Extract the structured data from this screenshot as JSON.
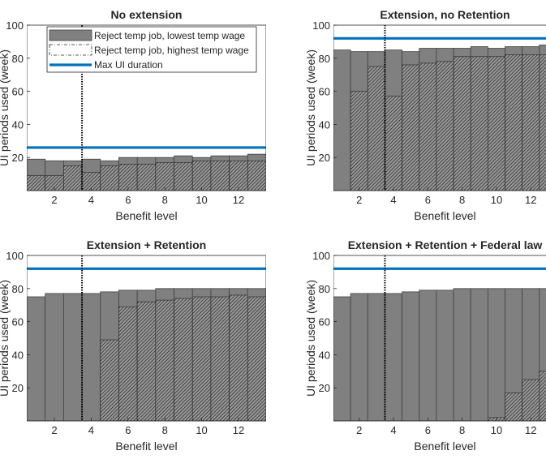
{
  "chart_data": [
    {
      "type": "bar",
      "title": "No extension",
      "xlabel": "Benefit level",
      "ylabel": "UI periods used (week)",
      "xlim": [
        0.5,
        13.5
      ],
      "ylim": [
        0,
        100
      ],
      "xticks": [
        2,
        4,
        6,
        8,
        10,
        12
      ],
      "yticks": [
        20,
        40,
        60,
        80,
        100
      ],
      "categories": [
        1,
        2,
        3,
        4,
        5,
        6,
        7,
        8,
        9,
        10,
        11,
        12,
        13
      ],
      "series": [
        {
          "name": "Reject temp job, lowest temp wage",
          "style": "solid-gray",
          "values": [
            19,
            18,
            18,
            19,
            18,
            20,
            20,
            20,
            21,
            20,
            21,
            21,
            22
          ]
        },
        {
          "name": "Reject temp job, highest temp wage",
          "style": "hatched",
          "values": [
            9,
            9,
            15,
            11,
            15,
            16,
            16,
            17,
            17,
            18,
            18,
            18,
            18
          ]
        }
      ],
      "max_ui_duration": 26,
      "vline_x": 3.5,
      "legend": {
        "position": "top",
        "entries": [
          "Reject temp job, lowest temp wage",
          "Reject temp job, highest temp wage",
          "Max UI duration"
        ]
      }
    },
    {
      "type": "bar",
      "title": "Extension, no Retention",
      "xlabel": "Benefit level",
      "ylabel": "UI periods used (week)",
      "xlim": [
        0.5,
        13.5
      ],
      "ylim": [
        0,
        100
      ],
      "xticks": [
        2,
        4,
        6,
        8,
        10,
        12
      ],
      "yticks": [
        20,
        40,
        60,
        80,
        100
      ],
      "categories": [
        1,
        2,
        3,
        4,
        5,
        6,
        7,
        8,
        9,
        10,
        11,
        12,
        13
      ],
      "series": [
        {
          "name": "Reject temp job, lowest temp wage",
          "style": "solid-gray",
          "values": [
            85,
            84,
            84,
            85,
            84,
            86,
            86,
            86,
            87,
            86,
            87,
            87,
            88
          ]
        },
        {
          "name": "Reject temp job, highest temp wage",
          "style": "hatched",
          "values": [
            0,
            60,
            75,
            57,
            76,
            77,
            78,
            81,
            81,
            81,
            82,
            82,
            82
          ]
        }
      ],
      "max_ui_duration": 92,
      "vline_x": 3.5
    },
    {
      "type": "bar",
      "title": "Extension + Retention",
      "xlabel": "Benefit level",
      "ylabel": "UI periods used (week)",
      "xlim": [
        0.5,
        13.5
      ],
      "ylim": [
        0,
        100
      ],
      "xticks": [
        2,
        4,
        6,
        8,
        10,
        12
      ],
      "yticks": [
        20,
        40,
        60,
        80,
        100
      ],
      "categories": [
        1,
        2,
        3,
        4,
        5,
        6,
        7,
        8,
        9,
        10,
        11,
        12,
        13
      ],
      "series": [
        {
          "name": "Reject temp job, lowest temp wage",
          "style": "solid-gray",
          "values": [
            75,
            77,
            77,
            77,
            78,
            79,
            79,
            80,
            80,
            80,
            80,
            80,
            80
          ]
        },
        {
          "name": "Reject temp job, highest temp wage",
          "style": "hatched",
          "values": [
            0,
            0,
            0,
            0,
            49,
            69,
            72,
            73,
            74,
            75,
            75,
            76,
            75
          ]
        }
      ],
      "max_ui_duration": 92,
      "vline_x": 3.5
    },
    {
      "type": "bar",
      "title": "Extension + Retention + Federal law",
      "xlabel": "Benefit level",
      "ylabel": "UI periods used (week)",
      "xlim": [
        0.5,
        13.5
      ],
      "ylim": [
        0,
        100
      ],
      "xticks": [
        2,
        4,
        6,
        8,
        10,
        12
      ],
      "yticks": [
        20,
        40,
        60,
        80,
        100
      ],
      "categories": [
        1,
        2,
        3,
        4,
        5,
        6,
        7,
        8,
        9,
        10,
        11,
        12,
        13
      ],
      "series": [
        {
          "name": "Reject temp job, lowest temp wage",
          "style": "solid-gray",
          "values": [
            75,
            77,
            77,
            77,
            78,
            79,
            79,
            80,
            80,
            80,
            80,
            80,
            80
          ]
        },
        {
          "name": "Reject temp job, highest temp wage",
          "style": "hatched",
          "values": [
            0,
            0,
            0,
            0,
            0,
            0,
            0,
            0,
            0,
            2,
            17,
            25,
            30
          ]
        }
      ],
      "max_ui_duration": 92,
      "vline_x": 3.5
    }
  ],
  "colors": {
    "gray_fill": "#808080",
    "edge": "#404040",
    "hatch": "#1a1a1a",
    "max_ui_line": "#0072BD",
    "axis": "#262626"
  }
}
